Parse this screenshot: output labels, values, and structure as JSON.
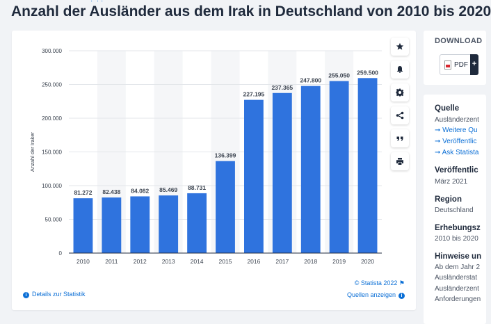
{
  "page": {
    "title": "Anzahl der Ausländer aus dem Irak in Deutschland von 2010 bis 2020"
  },
  "chart_data": {
    "type": "bar",
    "categories": [
      "2010",
      "2011",
      "2012",
      "2013",
      "2014",
      "2015",
      "2016",
      "2017",
      "2018",
      "2019",
      "2020"
    ],
    "values": [
      81272,
      82438,
      84082,
      85469,
      88731,
      136399,
      227195,
      237365,
      247800,
      255050,
      259500
    ],
    "value_labels": [
      "81.272",
      "82.438",
      "84.082",
      "85.469",
      "88.731",
      "136.399",
      "227.195",
      "237.365",
      "247.800",
      "255.050",
      "259.500"
    ],
    "ylabel": "Anzahl der Iraker",
    "ylim": [
      0,
      300000
    ],
    "yticks": [
      0,
      50000,
      100000,
      150000,
      200000,
      250000,
      300000
    ],
    "ytick_labels": [
      "0",
      "50.000",
      "100.000",
      "150.000",
      "200.000",
      "250.000",
      "300.000"
    ],
    "bar_color": "#2f73de",
    "grid": true,
    "alternating_column_shading": true
  },
  "toolbar": {
    "icons": [
      "star-icon",
      "bell-icon",
      "gear-icon",
      "share-icon",
      "quote-icon",
      "print-icon"
    ]
  },
  "footer": {
    "copyright": "© Statista 2022",
    "details_link": "Details zur Statistik",
    "sources_link": "Quellen anzeigen"
  },
  "sidebar": {
    "download_title": "DOWNLOAD",
    "pdf_label": "PDF",
    "plus_label": "+",
    "source_heading": "Quelle",
    "source_value": "Ausländerzent",
    "source_links": [
      "Weitere Qu",
      "Veröffentlic",
      "Ask Statista"
    ],
    "published_heading": "Veröffentlic",
    "published_value": "März 2021",
    "region_heading": "Region",
    "region_value": "Deutschland",
    "survey_heading": "Erhebungsz",
    "survey_value": "2010 bis 2020",
    "notes_heading": "Hinweise un",
    "notes_lines": [
      "Ab dem Jahr 2",
      "Ausländerstat",
      "Ausländerzent",
      "Anforderungen"
    ]
  }
}
